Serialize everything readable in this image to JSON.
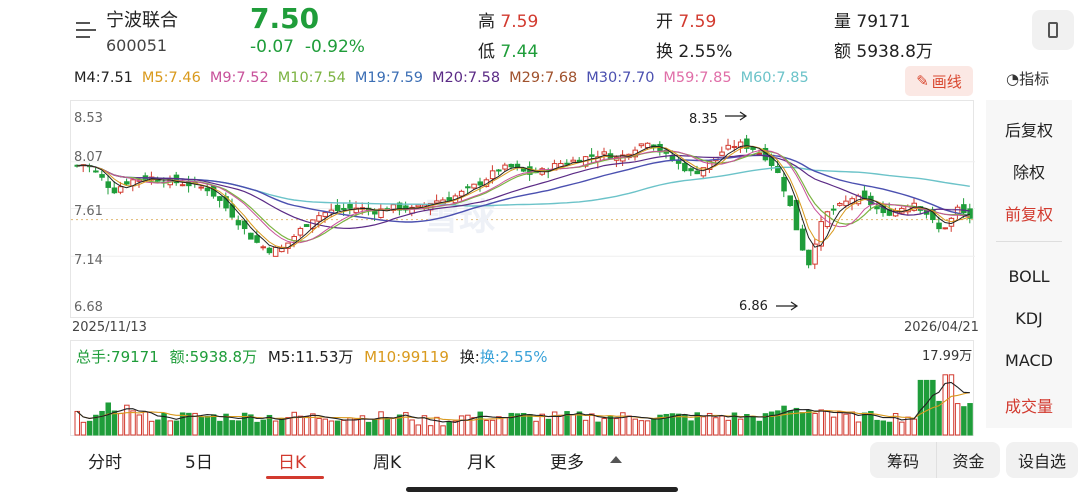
{
  "header": {
    "name": "宁波联合",
    "code": "600051",
    "price": "7.50",
    "change": "-0.07",
    "change_pct": "-0.92%",
    "high_label": "高",
    "high": "7.59",
    "low_label": "低",
    "low": "7.44",
    "open_label": "开",
    "open": "7.59",
    "turnover_label": "换",
    "turnover": "2.55%",
    "volume_label": "量",
    "volume": "79171",
    "amount_label": "额",
    "amount": "5938.8万"
  },
  "ma": [
    {
      "label": "M4:7.51",
      "color": "#222222"
    },
    {
      "label": "M5:7.46",
      "color": "#d99a1e"
    },
    {
      "label": "M9:7.52",
      "color": "#c8529b"
    },
    {
      "label": "M10:7.54",
      "color": "#7cb342"
    },
    {
      "label": "M19:7.59",
      "color": "#3c6fb5"
    },
    {
      "label": "M20:7.58",
      "color": "#5b2b86"
    },
    {
      "label": "M29:7.68",
      "color": "#a0522d"
    },
    {
      "label": "M30:7.70",
      "color": "#4b50b0"
    },
    {
      "label": "M59:7.85",
      "color": "#e06fa8"
    },
    {
      "label": "M60:7.85",
      "color": "#6cc3c9"
    }
  ],
  "toolbar": {
    "draw_label": "画线",
    "indicator_label": "指标"
  },
  "chart": {
    "y_ticks": [
      "8.53",
      "8.07",
      "7.61",
      "7.14",
      "6.68"
    ],
    "start_date": "2025/11/13",
    "end_date": "2026/04/21",
    "high_annot": "8.35",
    "low_annot": "6.86",
    "watermark": "雪球"
  },
  "volume_info": {
    "total": "总手:79171",
    "amount": "额:5938.8万",
    "m5": "M5:11.53万",
    "m10": "M10:99119",
    "turnover": "换:2.55%",
    "max_label": "17.99万"
  },
  "side_menu": {
    "items": [
      "后复权",
      "除权",
      "前复权",
      "BOLL",
      "KDJ",
      "MACD",
      "成交量"
    ]
  },
  "tabs": [
    "分时",
    "5日",
    "日K",
    "周K",
    "月K",
    "更多"
  ],
  "bottom_buttons": [
    "筹码",
    "资金",
    "设自选"
  ],
  "colors": {
    "up": "#d23a2f",
    "down": "#1f9d3a",
    "accent": "#d23a2f"
  }
}
